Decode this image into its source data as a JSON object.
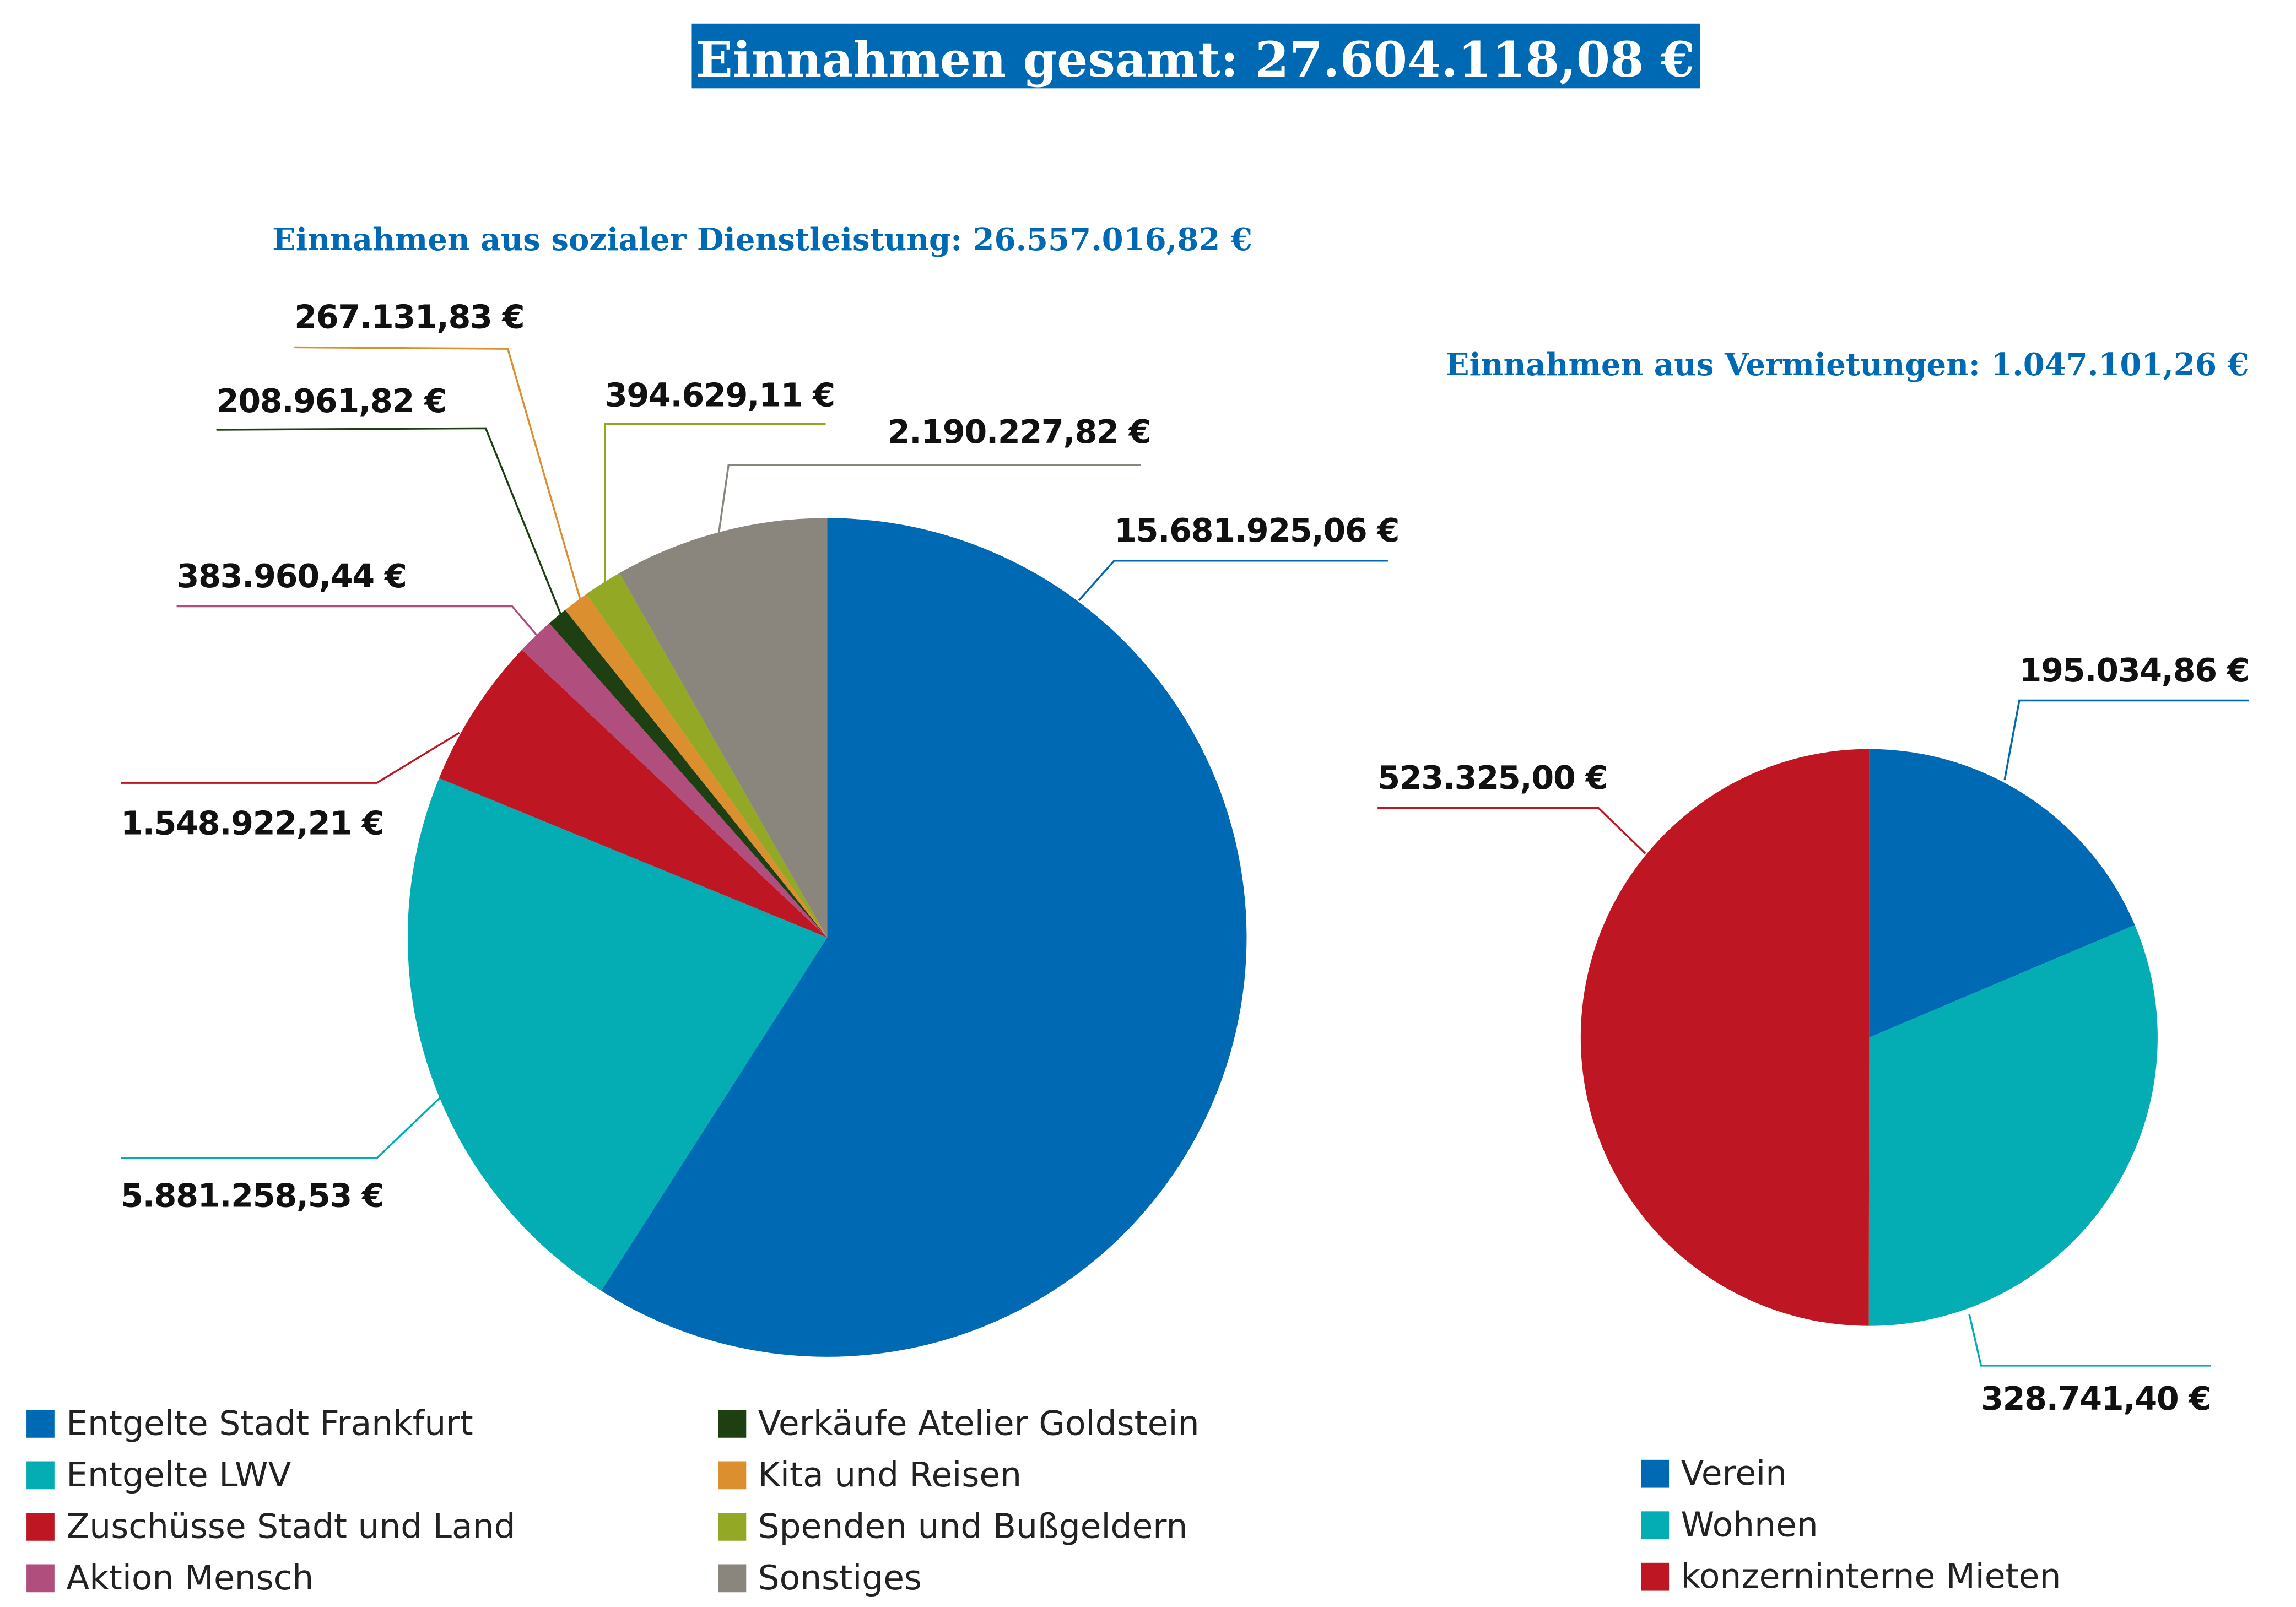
{
  "title": "Einnahmen gesamt: 27.604.118,08 €",
  "colors": {
    "accent": "#0069b4",
    "title_text": "#ffffff"
  },
  "chart_data": [
    {
      "type": "pie",
      "title": "Einnahmen aus sozialer Dienstleistung: 26.557.016,82 €",
      "start": "top",
      "direction": "clockwise",
      "slices": [
        {
          "name": "Entgelte Stadt Frankfurt",
          "value": 15681925.06,
          "label": "15.681.925,06 €",
          "color": "#0069b4"
        },
        {
          "name": "Entgelte LWV",
          "value": 5881258.53,
          "label": "5.881.258,53 €",
          "color": "#04adb3"
        },
        {
          "name": "Zuschüsse Stadt und Land",
          "value": 1548922.21,
          "label": "1.548.922,21 €",
          "color": "#be1622"
        },
        {
          "name": "Aktion Mensch",
          "value": 383960.44,
          "label": "383.960,44 €",
          "color": "#b04e7e"
        },
        {
          "name": "Verkäufe Atelier Goldstein",
          "value": 208961.82,
          "label": "208.961,82 €",
          "color": "#1e3f12"
        },
        {
          "name": "Kita und Reisen",
          "value": 267131.83,
          "label": "267.131,83 €",
          "color": "#dc8f2f"
        },
        {
          "name": "Spenden und Bußgeldern",
          "value": 394629.11,
          "label": "394.629,11 €",
          "color": "#93a824"
        },
        {
          "name": "Sonstiges",
          "value": 2190227.82,
          "label": "2.190.227,82 €",
          "color": "#8a857d"
        }
      ],
      "legend": [
        "Entgelte Stadt Frankfurt",
        "Entgelte LWV",
        "Zuschüsse Stadt und Land",
        "Aktion Mensch",
        "Verkäufe Atelier Goldstein",
        "Kita und Reisen",
        "Spenden und Bußgeldern",
        "Sonstiges"
      ],
      "legend_placement": "bottom"
    },
    {
      "type": "pie",
      "title": "Einnahmen aus Vermietungen: 1.047.101,26 €",
      "start": "top",
      "direction": "clockwise",
      "slices": [
        {
          "name": "Verein",
          "value": 195034.86,
          "label": "195.034,86 €",
          "color": "#0069b4"
        },
        {
          "name": "Wohnen",
          "value": 328741.4,
          "label": "328.741,40 €",
          "color": "#04adb3"
        },
        {
          "name": "konzerninterne Mieten",
          "value": 523325.0,
          "label": "523.325,00 €",
          "color": "#be1622"
        }
      ],
      "legend": [
        "Verein",
        "Wohnen",
        "konzerninterne Mieten"
      ],
      "legend_placement": "bottom-right"
    }
  ]
}
